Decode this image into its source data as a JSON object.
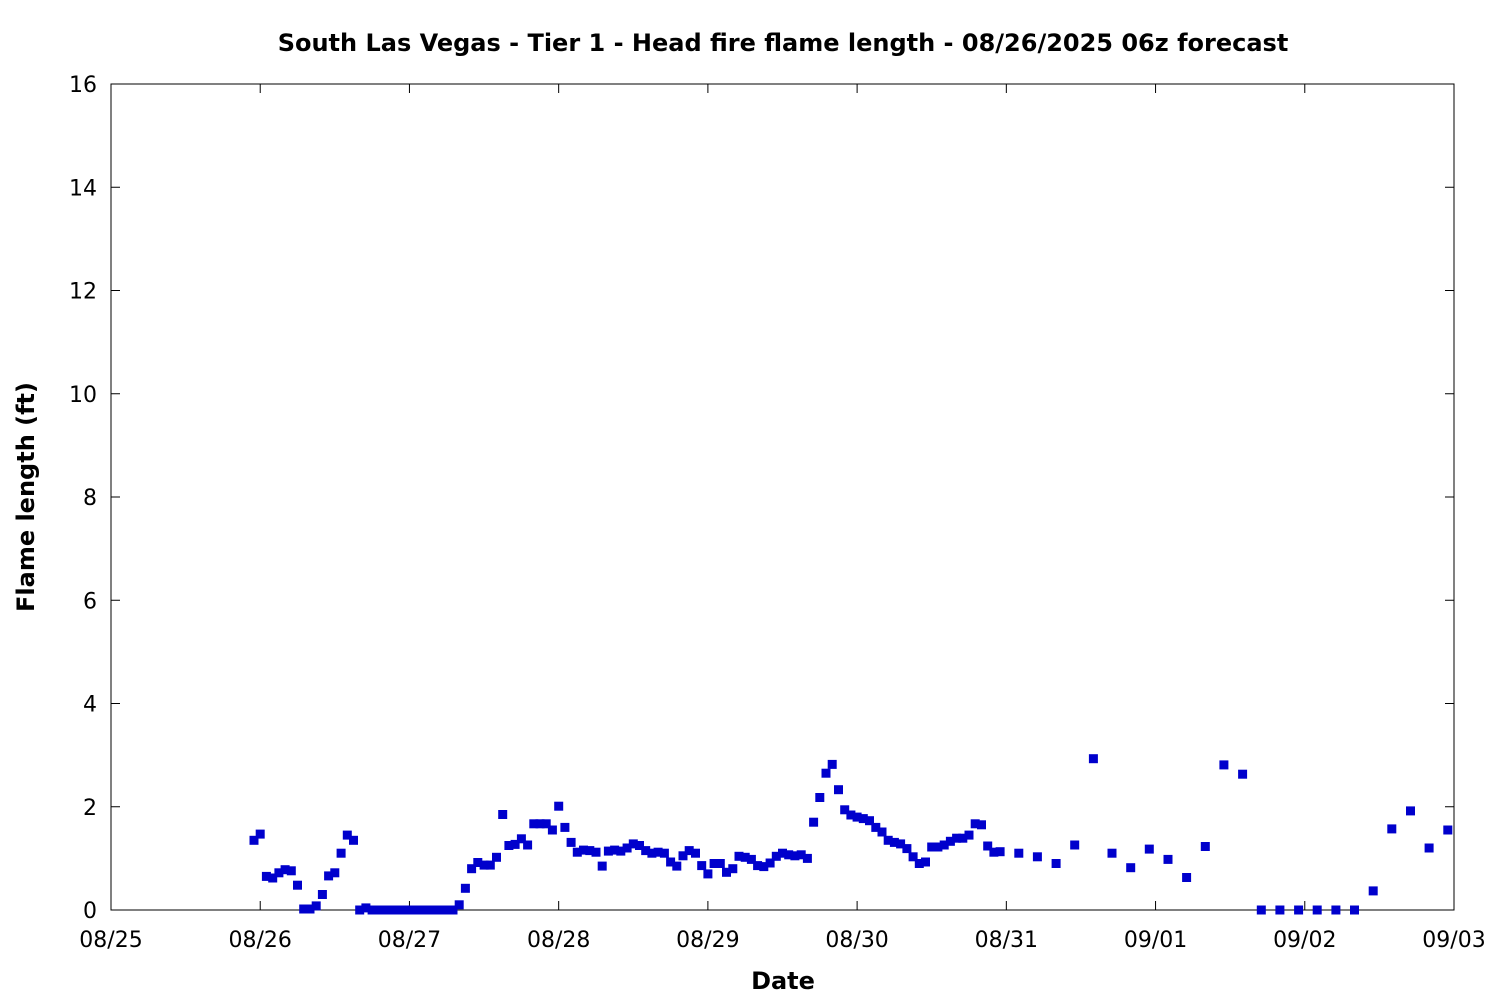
{
  "chart_data": {
    "type": "scatter",
    "title": "South Las Vegas - Tier 1 - Head fire flame length - 08/26/2025 06z forecast",
    "xlabel": "Date",
    "ylabel": "Flame length (ft)",
    "x_tick_labels": [
      "08/25",
      "08/26",
      "08/27",
      "08/28",
      "08/29",
      "08/30",
      "08/31",
      "09/01",
      "09/02",
      "09/03"
    ],
    "y_tick_labels": [
      "0",
      "2",
      "4",
      "6",
      "8",
      "10",
      "12",
      "14",
      "16"
    ],
    "xlim": [
      "2025-08-25 00:00",
      "2025-09-03 00:00"
    ],
    "ylim": [
      0,
      16
    ],
    "grid": false,
    "marker": "square",
    "color": "#0000cc",
    "series": [
      {
        "x": [
          "2025-08-25 23:00",
          "2025-08-26 00:00",
          "2025-08-26 01:00",
          "2025-08-26 02:00",
          "2025-08-26 03:00",
          "2025-08-26 04:00",
          "2025-08-26 05:00",
          "2025-08-26 06:00",
          "2025-08-26 07:00",
          "2025-08-26 08:00",
          "2025-08-26 09:00",
          "2025-08-26 10:00",
          "2025-08-26 11:00",
          "2025-08-26 12:00",
          "2025-08-26 13:00",
          "2025-08-26 14:00",
          "2025-08-26 15:00",
          "2025-08-26 16:00",
          "2025-08-26 17:00",
          "2025-08-26 18:00",
          "2025-08-26 19:00",
          "2025-08-26 20:00",
          "2025-08-26 21:00",
          "2025-08-26 22:00",
          "2025-08-26 23:00",
          "2025-08-27 00:00",
          "2025-08-27 01:00",
          "2025-08-27 02:00",
          "2025-08-27 03:00",
          "2025-08-27 04:00",
          "2025-08-27 05:00",
          "2025-08-27 06:00",
          "2025-08-27 07:00",
          "2025-08-27 08:00",
          "2025-08-27 09:00",
          "2025-08-27 10:00",
          "2025-08-27 11:00",
          "2025-08-27 12:00",
          "2025-08-27 13:00",
          "2025-08-27 14:00",
          "2025-08-27 15:00",
          "2025-08-27 16:00",
          "2025-08-27 17:00",
          "2025-08-27 18:00",
          "2025-08-27 19:00",
          "2025-08-27 20:00",
          "2025-08-27 21:00",
          "2025-08-27 22:00",
          "2025-08-27 23:00",
          "2025-08-28 00:00",
          "2025-08-28 01:00",
          "2025-08-28 02:00",
          "2025-08-28 03:00",
          "2025-08-28 04:00",
          "2025-08-28 05:00",
          "2025-08-28 06:00",
          "2025-08-28 07:00",
          "2025-08-28 08:00",
          "2025-08-28 09:00",
          "2025-08-28 10:00",
          "2025-08-28 11:00",
          "2025-08-28 12:00",
          "2025-08-28 13:00",
          "2025-08-28 14:00",
          "2025-08-28 15:00",
          "2025-08-28 16:00",
          "2025-08-28 17:00",
          "2025-08-28 18:00",
          "2025-08-28 19:00",
          "2025-08-28 20:00",
          "2025-08-28 21:00",
          "2025-08-28 22:00",
          "2025-08-28 23:00",
          "2025-08-29 00:00",
          "2025-08-29 01:00",
          "2025-08-29 02:00",
          "2025-08-29 03:00",
          "2025-08-29 04:00",
          "2025-08-29 05:00",
          "2025-08-29 06:00",
          "2025-08-29 07:00",
          "2025-08-29 08:00",
          "2025-08-29 09:00",
          "2025-08-29 10:00",
          "2025-08-29 11:00",
          "2025-08-29 12:00",
          "2025-08-29 13:00",
          "2025-08-29 14:00",
          "2025-08-29 15:00",
          "2025-08-29 16:00",
          "2025-08-29 17:00",
          "2025-08-29 18:00",
          "2025-08-29 19:00",
          "2025-08-29 20:00",
          "2025-08-29 21:00",
          "2025-08-29 22:00",
          "2025-08-29 23:00",
          "2025-08-30 00:00",
          "2025-08-30 01:00",
          "2025-08-30 02:00",
          "2025-08-30 03:00",
          "2025-08-30 04:00",
          "2025-08-30 05:00",
          "2025-08-30 06:00",
          "2025-08-30 07:00",
          "2025-08-30 08:00",
          "2025-08-30 09:00",
          "2025-08-30 10:00",
          "2025-08-30 11:00",
          "2025-08-30 12:00",
          "2025-08-30 13:00",
          "2025-08-30 14:00",
          "2025-08-30 15:00",
          "2025-08-30 16:00",
          "2025-08-30 17:00",
          "2025-08-30 18:00",
          "2025-08-30 19:00",
          "2025-08-30 20:00",
          "2025-08-30 21:00",
          "2025-08-30 22:00",
          "2025-08-30 23:00",
          "2025-08-31 02:00",
          "2025-08-31 05:00",
          "2025-08-31 08:00",
          "2025-08-31 11:00",
          "2025-08-31 14:00",
          "2025-08-31 17:00",
          "2025-08-31 20:00",
          "2025-08-31 23:00",
          "2025-09-01 02:00",
          "2025-09-01 05:00",
          "2025-09-01 08:00",
          "2025-09-01 11:00",
          "2025-09-01 14:00",
          "2025-09-01 17:00",
          "2025-09-01 20:00",
          "2025-09-01 23:00",
          "2025-09-02 02:00",
          "2025-09-02 05:00",
          "2025-09-02 08:00",
          "2025-09-02 11:00",
          "2025-09-02 14:00",
          "2025-09-02 17:00",
          "2025-09-02 20:00",
          "2025-09-02 23:00"
        ],
        "y": [
          1.35,
          1.47,
          0.65,
          0.62,
          0.72,
          0.78,
          0.76,
          0.48,
          0.02,
          0.02,
          0.08,
          0.3,
          0.66,
          0.72,
          1.1,
          1.45,
          1.35,
          0.0,
          0.04,
          0.0,
          0.0,
          0.0,
          0.0,
          0.0,
          0.0,
          0.0,
          0.0,
          0.0,
          0.0,
          0.0,
          0.0,
          0.0,
          0.0,
          0.1,
          0.42,
          0.8,
          0.92,
          0.87,
          0.87,
          1.02,
          1.85,
          1.25,
          1.27,
          1.38,
          1.26,
          1.67,
          1.67,
          1.67,
          1.55,
          2.01,
          1.6,
          1.31,
          1.12,
          1.16,
          1.15,
          1.12,
          0.85,
          1.14,
          1.16,
          1.14,
          1.2,
          1.28,
          1.25,
          1.15,
          1.1,
          1.12,
          1.1,
          0.93,
          0.85,
          1.05,
          1.15,
          1.1,
          0.86,
          0.7,
          0.9,
          0.9,
          0.73,
          0.8,
          1.04,
          1.02,
          0.98,
          0.86,
          0.84,
          0.91,
          1.04,
          1.1,
          1.07,
          1.05,
          1.07,
          1.0,
          1.7,
          2.18,
          2.65,
          2.82,
          2.33,
          1.94,
          1.84,
          1.8,
          1.77,
          1.73,
          1.6,
          1.51,
          1.35,
          1.31,
          1.28,
          1.19,
          1.03,
          0.9,
          0.93,
          1.22,
          1.22,
          1.26,
          1.33,
          1.39,
          1.39,
          1.45,
          1.67,
          1.65,
          1.24,
          1.12,
          1.13,
          1.1,
          1.03,
          0.9,
          1.26,
          2.93,
          1.1,
          0.82,
          1.18,
          0.98,
          0.63,
          1.23,
          2.81,
          2.63,
          0.0,
          0.0,
          0.0,
          0.0,
          0.0,
          0.0,
          0.37,
          1.57,
          1.92,
          1.2,
          1.55
        ]
      }
    ]
  }
}
